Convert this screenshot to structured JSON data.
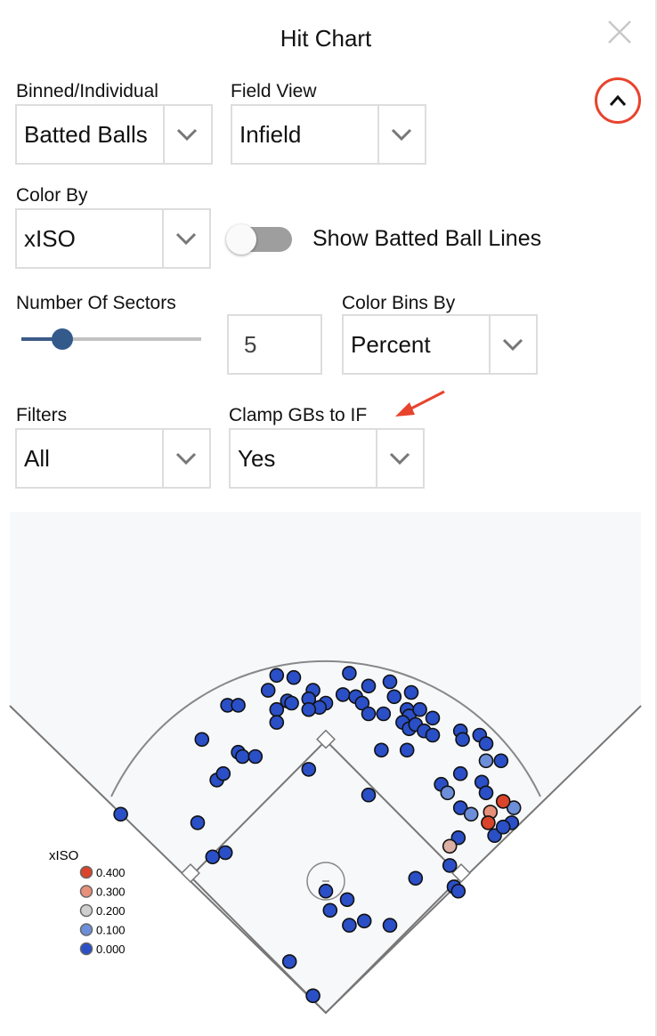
{
  "header": {
    "title": "Hit Chart",
    "close_icon": "close-icon",
    "collapse_icon": "chevron-up-icon",
    "collapse_highlight_color": "#e8432d"
  },
  "controls": {
    "binned": {
      "label": "Binned/Individual",
      "value": "Batted Balls"
    },
    "field_view": {
      "label": "Field View",
      "value": "Infield"
    },
    "color_by": {
      "label": "Color By",
      "value": "xISO"
    },
    "batted_ball_lines": {
      "label": "Show Batted Ball Lines",
      "on": false
    },
    "sectors": {
      "label": "Number Of Sectors",
      "value": "5",
      "slider_fraction": 0.23
    },
    "color_bins_by": {
      "label": "Color Bins By",
      "value": "Percent"
    },
    "filters": {
      "label": "Filters",
      "value": "All"
    },
    "clamp": {
      "label": "Clamp GBs to IF",
      "value": "Yes"
    },
    "annotation_arrow_color": "#e8432d"
  },
  "chart_data": {
    "type": "scatter",
    "coordinates": "feet from home plate (x toward 1B side, y toward CF)",
    "legend": {
      "title": "xISO",
      "placement": "bottom-left",
      "entries": [
        {
          "label": "0.400",
          "color": "#d9442a"
        },
        {
          "label": "0.300",
          "color": "#e8907a"
        },
        {
          "label": "0.200",
          "color": "#cfcfcf"
        },
        {
          "label": "0.100",
          "color": "#6d8ed8"
        },
        {
          "label": "0.000",
          "color": "#2a4fc6"
        }
      ]
    },
    "points": [
      [
        -23,
        158,
        0
      ],
      [
        -15,
        157,
        0
      ],
      [
        11,
        159,
        0
      ],
      [
        20,
        153,
        0
      ],
      [
        30,
        155,
        0
      ],
      [
        -27,
        151,
        0
      ],
      [
        -6,
        151,
        0
      ],
      [
        8,
        149,
        0
      ],
      [
        32,
        148,
        0
      ],
      [
        40,
        150,
        0
      ],
      [
        -18,
        146,
        0
      ],
      [
        -16,
        145,
        0
      ],
      [
        -8,
        147,
        0
      ],
      [
        0,
        145,
        0
      ],
      [
        -3,
        143,
        0
      ],
      [
        14,
        148,
        0
      ],
      [
        17,
        145,
        0
      ],
      [
        38,
        142,
        0
      ],
      [
        39,
        139,
        0
      ],
      [
        44,
        142,
        0
      ],
      [
        50,
        138,
        0
      ],
      [
        -46,
        144,
        0
      ],
      [
        -41,
        144,
        0
      ],
      [
        -23,
        142,
        0
      ],
      [
        -23,
        136,
        0
      ],
      [
        -8,
        142,
        0
      ],
      [
        20,
        140,
        0
      ],
      [
        27,
        140,
        0
      ],
      [
        36,
        136,
        0
      ],
      [
        39,
        133,
        0
      ],
      [
        42,
        135,
        0
      ],
      [
        46,
        132,
        0
      ],
      [
        50,
        130,
        0
      ],
      [
        63,
        132,
        0
      ],
      [
        64,
        128,
        0
      ],
      [
        72,
        130,
        0
      ],
      [
        75,
        126,
        0
      ],
      [
        -58,
        128,
        0
      ],
      [
        -41,
        122,
        0
      ],
      [
        -39,
        120,
        0
      ],
      [
        -33,
        120,
        0
      ],
      [
        26,
        123,
        0
      ],
      [
        38,
        123,
        0
      ],
      [
        -8,
        114,
        0
      ],
      [
        75,
        118,
        0.1
      ],
      [
        82,
        118,
        0
      ],
      [
        -51,
        109,
        0
      ],
      [
        -48,
        112,
        0
      ],
      [
        54,
        107,
        0
      ],
      [
        57,
        103,
        0.1
      ],
      [
        63,
        112,
        0
      ],
      [
        73,
        108,
        0
      ],
      [
        75,
        103,
        0
      ],
      [
        88,
        96,
        0.1
      ],
      [
        63,
        96,
        0
      ],
      [
        68,
        93,
        0.1
      ],
      [
        20,
        102,
        0
      ],
      [
        83,
        99,
        0.4
      ],
      [
        77,
        94,
        0.3
      ],
      [
        76,
        89,
        0.4
      ],
      [
        79,
        83,
        0
      ],
      [
        87,
        89,
        0
      ],
      [
        83,
        87,
        0
      ],
      [
        -96,
        93,
        0
      ],
      [
        -60,
        89,
        0
      ],
      [
        62,
        82,
        0
      ],
      [
        58,
        78,
        0.25
      ],
      [
        -53,
        73,
        0
      ],
      [
        -47,
        75,
        0
      ],
      [
        58,
        69,
        0
      ],
      [
        42,
        63,
        0
      ],
      [
        60,
        59,
        0
      ],
      [
        62,
        57,
        0
      ],
      [
        0,
        57,
        0
      ],
      [
        10,
        53,
        0
      ],
      [
        2,
        48,
        0
      ],
      [
        18,
        43,
        0
      ],
      [
        11,
        41,
        0
      ],
      [
        30,
        41,
        0
      ],
      [
        -17,
        24,
        0
      ],
      [
        -6,
        8,
        0
      ]
    ]
  }
}
